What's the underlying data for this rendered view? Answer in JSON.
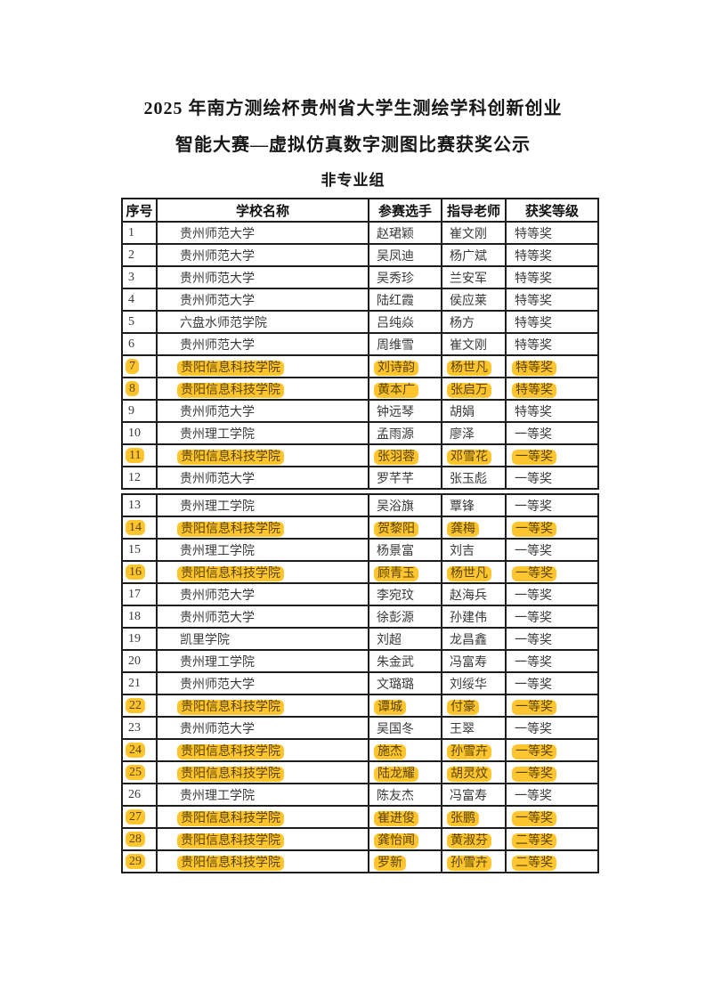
{
  "page": {
    "title_line1": "2025 年南方测绘杯贵州省大学生测绘学科创新创业",
    "title_line2": "智能大赛—虚拟仿真数字测图比赛获奖公示",
    "subtitle": "非专业组"
  },
  "table": {
    "columns": [
      "序号",
      "学校名称",
      "参赛选手",
      "指导老师",
      "获奖等级"
    ],
    "highlight_color": "#FEC52E",
    "page_break_after_row": 12,
    "rows": [
      {
        "no": "1",
        "school": "贵州师范大学",
        "contestant": "赵珺颖",
        "teacher": "崔文刚",
        "award": "特等奖",
        "highlight": false
      },
      {
        "no": "2",
        "school": "贵州师范大学",
        "contestant": "吴凤迪",
        "teacher": "杨广斌",
        "award": "特等奖",
        "highlight": false
      },
      {
        "no": "3",
        "school": "贵州师范大学",
        "contestant": "吴秀珍",
        "teacher": "兰安军",
        "award": "特等奖",
        "highlight": false
      },
      {
        "no": "4",
        "school": "贵州师范大学",
        "contestant": "陆红霞",
        "teacher": "侯应莱",
        "award": "特等奖",
        "highlight": false
      },
      {
        "no": "5",
        "school": "六盘水师范学院",
        "contestant": "吕纯焱",
        "teacher": "杨方",
        "award": "特等奖",
        "highlight": false
      },
      {
        "no": "6",
        "school": "贵州师范大学",
        "contestant": "周维雪",
        "teacher": "崔文刚",
        "award": "特等奖",
        "highlight": false
      },
      {
        "no": "7",
        "school": "贵阳信息科技学院",
        "contestant": "刘诗韵",
        "teacher": "杨世凡",
        "award": "特等奖",
        "highlight": true
      },
      {
        "no": "8",
        "school": "贵阳信息科技学院",
        "contestant": "黄本广",
        "teacher": "张启万",
        "award": "特等奖",
        "highlight": true
      },
      {
        "no": "9",
        "school": "贵州师范大学",
        "contestant": "钟远琴",
        "teacher": "胡娟",
        "award": "特等奖",
        "highlight": false
      },
      {
        "no": "10",
        "school": "贵州理工学院",
        "contestant": "孟雨源",
        "teacher": "廖泽",
        "award": "一等奖",
        "highlight": false
      },
      {
        "no": "11",
        "school": "贵阳信息科技学院",
        "contestant": "张羽蓉",
        "teacher": "邓雪花",
        "award": "一等奖",
        "highlight": true
      },
      {
        "no": "12",
        "school": "贵州师范大学",
        "contestant": "罗芊芊",
        "teacher": "张玉彪",
        "award": "一等奖",
        "highlight": false
      },
      {
        "no": "13",
        "school": "贵州理工学院",
        "contestant": "吴浴旗",
        "teacher": "覃锋",
        "award": "一等奖",
        "highlight": false
      },
      {
        "no": "14",
        "school": "贵阳信息科技学院",
        "contestant": "贺黎阳",
        "teacher": "龚梅",
        "award": "一等奖",
        "highlight": true
      },
      {
        "no": "15",
        "school": "贵州理工学院",
        "contestant": "杨景富",
        "teacher": "刘吉",
        "award": "一等奖",
        "highlight": false
      },
      {
        "no": "16",
        "school": "贵阳信息科技学院",
        "contestant": "顾青玉",
        "teacher": "杨世凡",
        "award": "一等奖",
        "highlight": true
      },
      {
        "no": "17",
        "school": "贵州师范大学",
        "contestant": "李宛玟",
        "teacher": "赵海兵",
        "award": "一等奖",
        "highlight": false
      },
      {
        "no": "18",
        "school": "贵州师范大学",
        "contestant": "徐彭源",
        "teacher": "孙建伟",
        "award": "一等奖",
        "highlight": false
      },
      {
        "no": "19",
        "school": "凯里学院",
        "contestant": "刘超",
        "teacher": "龙昌鑫",
        "award": "一等奖",
        "highlight": false
      },
      {
        "no": "20",
        "school": "贵州理工学院",
        "contestant": "朱金武",
        "teacher": "冯富寿",
        "award": "一等奖",
        "highlight": false
      },
      {
        "no": "21",
        "school": "贵州师范大学",
        "contestant": "文璐璐",
        "teacher": "刘绥华",
        "award": "一等奖",
        "highlight": false
      },
      {
        "no": "22",
        "school": "贵阳信息科技学院",
        "contestant": "谭城",
        "teacher": "付豪",
        "award": "一等奖",
        "highlight": true
      },
      {
        "no": "23",
        "school": "贵州师范大学",
        "contestant": "吴国冬",
        "teacher": "王翠",
        "award": "一等奖",
        "highlight": false
      },
      {
        "no": "24",
        "school": "贵阳信息科技学院",
        "contestant": "施杰",
        "teacher": "孙雪卉",
        "award": "一等奖",
        "highlight": true
      },
      {
        "no": "25",
        "school": "贵阳信息科技学院",
        "contestant": "陆龙耀",
        "teacher": "胡灵炆",
        "award": "一等奖",
        "highlight": true
      },
      {
        "no": "26",
        "school": "贵州理工学院",
        "contestant": "陈友杰",
        "teacher": "冯富寿",
        "award": "一等奖",
        "highlight": false
      },
      {
        "no": "27",
        "school": "贵阳信息科技学院",
        "contestant": "崔进俊",
        "teacher": "张鹏",
        "award": "一等奖",
        "highlight": true
      },
      {
        "no": "28",
        "school": "贵阳信息科技学院",
        "contestant": "龚怡闻",
        "teacher": "黄淑芬",
        "award": "二等奖",
        "highlight": true
      },
      {
        "no": "29",
        "school": "贵阳信息科技学院",
        "contestant": "罗新",
        "teacher": "孙雪卉",
        "award": "二等奖",
        "highlight": true
      }
    ]
  }
}
